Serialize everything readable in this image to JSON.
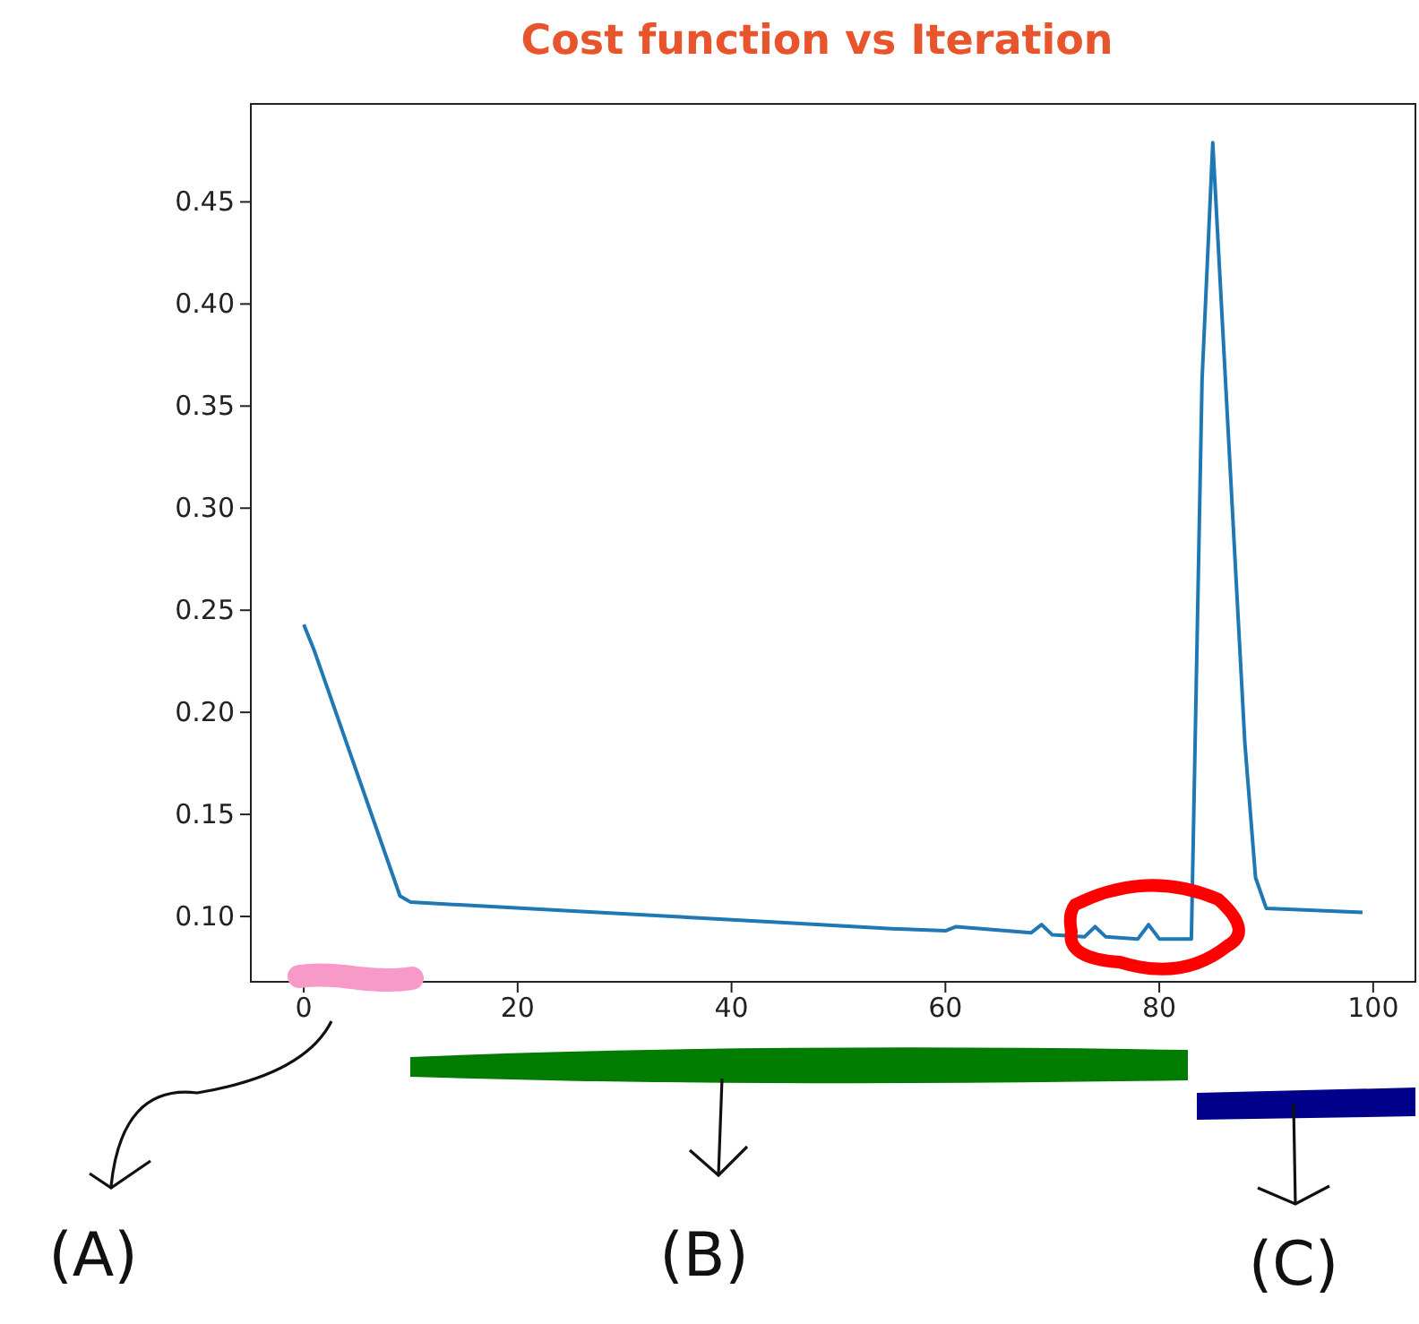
{
  "chart_data": {
    "type": "line",
    "title": "Cost function vs Iteration",
    "series": [
      {
        "color": "#1f77b4",
        "x": [
          0,
          1,
          9,
          10,
          45,
          55,
          60,
          61,
          68,
          69,
          70,
          73,
          74,
          75,
          78,
          79,
          80,
          83,
          84,
          85,
          88,
          89,
          90,
          99
        ],
        "values": [
          0.243,
          0.23,
          0.11,
          0.107,
          0.097,
          0.094,
          0.093,
          0.095,
          0.092,
          0.096,
          0.091,
          0.09,
          0.095,
          0.09,
          0.089,
          0.096,
          0.089,
          0.089,
          0.363,
          0.479,
          0.185,
          0.119,
          0.104,
          0.102
        ]
      }
    ],
    "xlim": [
      -4.95,
      103.95
    ],
    "xticks": [
      0,
      20,
      40,
      60,
      80,
      100
    ],
    "ylim": [
      0.068,
      0.498
    ],
    "yticks": [
      {
        "value": 0.1,
        "label": "0.10"
      },
      0.15,
      {
        "value": 0.2,
        "label": "0.20"
      },
      0.25,
      {
        "value": 0.3,
        "label": "0.30"
      },
      0.35,
      {
        "value": 0.4,
        "label": "0.40"
      },
      0.45
    ],
    "grid": false,
    "marker": "none",
    "line_style": "solid",
    "annotations": [
      "(A)",
      "(B)",
      "(C)"
    ]
  }
}
